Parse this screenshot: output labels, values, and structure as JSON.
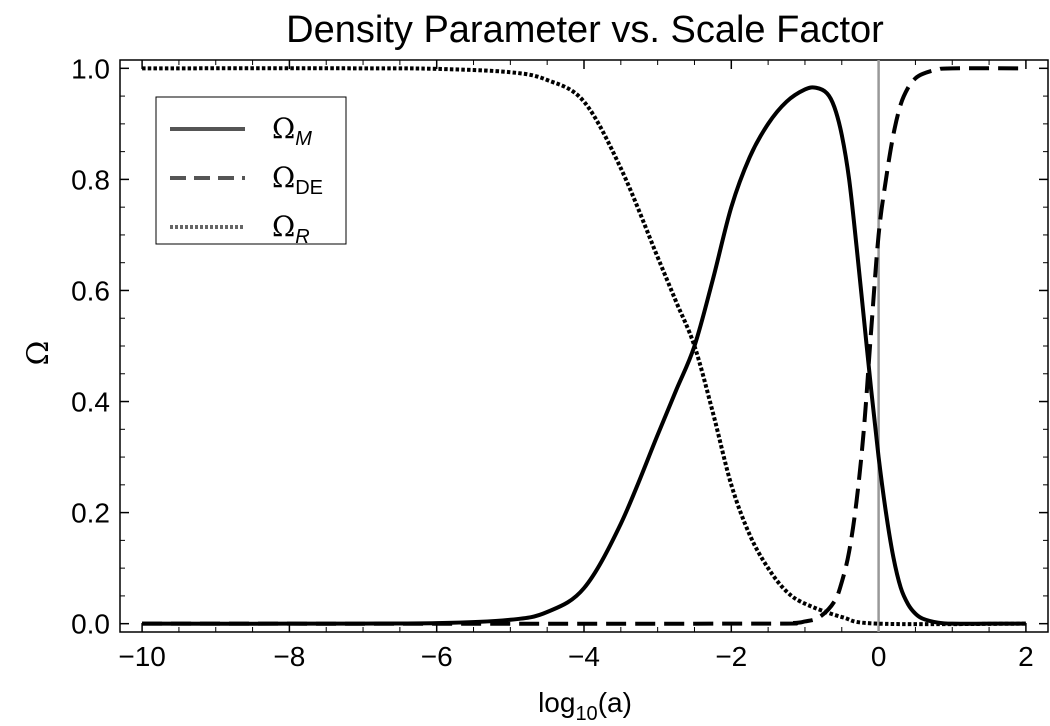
{
  "chart_data": {
    "type": "line",
    "title": "Density Parameter vs. Scale Factor",
    "xlabel": {
      "base": "log",
      "sub": "10",
      "suffix": "(a)"
    },
    "ylabel": "Ω",
    "xlim": [
      -10.3,
      2.3
    ],
    "ylim": [
      -0.015,
      1.015
    ],
    "x_ticks": [
      -10,
      -8,
      -6,
      -4,
      -2,
      0,
      2
    ],
    "x_tick_labels": [
      "−10",
      "−8",
      "−6",
      "−4",
      "−2",
      "0",
      "2"
    ],
    "y_ticks": [
      0.0,
      0.2,
      0.4,
      0.6,
      0.8,
      1.0
    ],
    "y_tick_labels": [
      "0.0",
      "0.2",
      "0.4",
      "0.6",
      "0.8",
      "1.0"
    ],
    "vertical_line_x": 0,
    "legend_position": "top-left",
    "series": [
      {
        "name": "Ω_M",
        "symbol": "Ω",
        "sub": "M",
        "sub_italic": true,
        "style": "solid",
        "x": [
          -10,
          -8,
          -6,
          -5,
          -4.5,
          -4,
          -3.5,
          -3,
          -2.75,
          -2.5,
          -2.25,
          -2,
          -1.75,
          -1.5,
          -1.25,
          -1,
          -0.85,
          -0.7,
          -0.6,
          -0.5,
          -0.4,
          -0.3,
          -0.2,
          -0.1,
          0,
          0.1,
          0.2,
          0.3,
          0.4,
          0.5,
          0.6,
          0.8,
          1,
          1.5,
          2
        ],
        "y": [
          0.0,
          0.0,
          0.001,
          0.007,
          0.021,
          0.064,
          0.18,
          0.34,
          0.42,
          0.5,
          0.62,
          0.75,
          0.84,
          0.9,
          0.94,
          0.962,
          0.965,
          0.955,
          0.93,
          0.88,
          0.8,
          0.68,
          0.55,
          0.42,
          0.3,
          0.2,
          0.12,
          0.065,
          0.035,
          0.018,
          0.009,
          0.002,
          0.0,
          0.0,
          0.0
        ]
      },
      {
        "name": "Ω_DE",
        "symbol": "Ω",
        "sub": "DE",
        "sub_italic": false,
        "style": "dashed",
        "x": [
          -10,
          -2,
          -1.2,
          -1,
          -0.8,
          -0.6,
          -0.5,
          -0.4,
          -0.3,
          -0.2,
          -0.1,
          0,
          0.1,
          0.2,
          0.3,
          0.4,
          0.5,
          0.6,
          0.8,
          1,
          2
        ],
        "y": [
          0.0,
          0.0,
          0.001,
          0.004,
          0.012,
          0.04,
          0.075,
          0.13,
          0.22,
          0.35,
          0.53,
          0.7,
          0.8,
          0.88,
          0.935,
          0.965,
          0.982,
          0.99,
          0.998,
          1.0,
          1.0
        ]
      },
      {
        "name": "Ω_R",
        "symbol": "Ω",
        "sub": "R",
        "sub_italic": true,
        "style": "dotted",
        "x": [
          -10,
          -7,
          -6,
          -5,
          -4.5,
          -4,
          -3.5,
          -3,
          -2.75,
          -2.5,
          -2.25,
          -2,
          -1.75,
          -1.5,
          -1.25,
          -1,
          -0.5,
          0,
          2
        ],
        "y": [
          1.0,
          1.0,
          0.999,
          0.993,
          0.979,
          0.94,
          0.82,
          0.66,
          0.58,
          0.5,
          0.38,
          0.25,
          0.16,
          0.1,
          0.058,
          0.036,
          0.012,
          0.0,
          0.0
        ]
      }
    ]
  }
}
